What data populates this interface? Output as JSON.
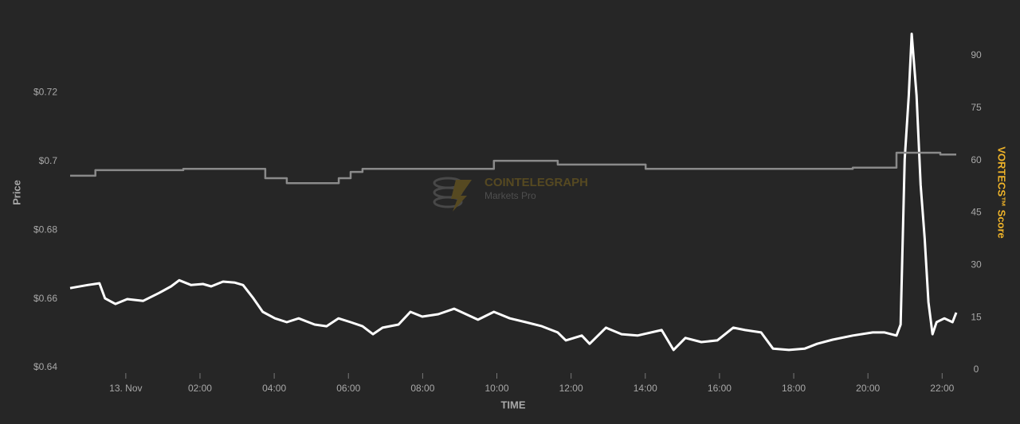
{
  "chart_data": {
    "type": "line",
    "watermark": {
      "title": "COINTELEGRAPH",
      "subtitle": "Markets Pro"
    },
    "x_label": "TIME",
    "y_label": "Price",
    "y2_label": "VORTECS™ Score",
    "xlim": [
      -1.5,
      22.38
    ],
    "xticks": [
      {
        "value": 0,
        "label": "13. Nov"
      },
      {
        "value": 2,
        "label": "02:00"
      },
      {
        "value": 4,
        "label": "04:00"
      },
      {
        "value": 6,
        "label": "06:00"
      },
      {
        "value": 8,
        "label": "08:00"
      },
      {
        "value": 10,
        "label": "10:00"
      },
      {
        "value": 12,
        "label": "12:00"
      },
      {
        "value": 14,
        "label": "14:00"
      },
      {
        "value": 16,
        "label": "16:00"
      },
      {
        "value": 18,
        "label": "18:00"
      },
      {
        "value": 20,
        "label": "20:00"
      },
      {
        "value": 22,
        "label": "22:00"
      }
    ],
    "ylim": [
      0.6393,
      0.74
    ],
    "yticks": [
      {
        "value": 0.64,
        "label": "$0.64"
      },
      {
        "value": 0.66,
        "label": "$0.66"
      },
      {
        "value": 0.68,
        "label": "$0.68"
      },
      {
        "value": 0.7,
        "label": "$0.7"
      },
      {
        "value": 0.72,
        "label": "$0.72"
      }
    ],
    "y2lim": [
      0,
      99.1
    ],
    "y2ticks": [
      0,
      15,
      30,
      45,
      60,
      75,
      90
    ],
    "series": [
      {
        "color": "#ffffff",
        "axis": "y",
        "x": [
          -1.5,
          -1.03,
          -0.71,
          -0.56,
          -0.28,
          0.04,
          0.47,
          0.9,
          1.22,
          1.44,
          1.76,
          2.08,
          2.3,
          2.62,
          2.94,
          3.16,
          3.44,
          3.69,
          4.02,
          4.34,
          4.66,
          5.09,
          5.41,
          5.73,
          6.06,
          6.38,
          6.66,
          6.92,
          7.35,
          7.67,
          7.99,
          8.42,
          8.85,
          9.17,
          9.49,
          9.92,
          10.35,
          10.78,
          11.21,
          11.64,
          11.86,
          12.29,
          12.5,
          12.94,
          13.36,
          13.79,
          14.44,
          14.76,
          15.08,
          15.51,
          15.94,
          16.37,
          16.69,
          17.12,
          17.44,
          17.87,
          18.3,
          18.63,
          19.05,
          19.59,
          20.13,
          20.45,
          20.77,
          20.88,
          20.99,
          21.1,
          21.18,
          21.31,
          21.42,
          21.53,
          21.63,
          21.74,
          21.85,
          22.06,
          22.28,
          22.38
        ],
        "values": [
          0.6631,
          0.664,
          0.6645,
          0.6601,
          0.6585,
          0.6599,
          0.6594,
          0.6617,
          0.6636,
          0.6654,
          0.664,
          0.6643,
          0.6636,
          0.665,
          0.6647,
          0.664,
          0.6601,
          0.6562,
          0.6543,
          0.6532,
          0.6543,
          0.6525,
          0.652,
          0.6543,
          0.6532,
          0.652,
          0.6497,
          0.6516,
          0.6525,
          0.6562,
          0.6548,
          0.6555,
          0.6571,
          0.6555,
          0.6539,
          0.6562,
          0.6543,
          0.6532,
          0.652,
          0.6502,
          0.6479,
          0.6493,
          0.6469,
          0.6516,
          0.6497,
          0.6493,
          0.6509,
          0.6451,
          0.6486,
          0.6474,
          0.6479,
          0.6516,
          0.6509,
          0.6502,
          0.6455,
          0.6451,
          0.6455,
          0.6469,
          0.6481,
          0.6493,
          0.6502,
          0.6502,
          0.6493,
          0.6525,
          0.7006,
          0.7191,
          0.7371,
          0.7191,
          0.6932,
          0.6775,
          0.659,
          0.6497,
          0.6532,
          0.6543,
          0.6532,
          0.656
        ]
      },
      {
        "color": "#8a8a8a",
        "axis": "y2",
        "x": [
          -1.5,
          -0.82,
          -0.82,
          1.55,
          1.55,
          3.76,
          3.76,
          4.34,
          4.34,
          5.74,
          5.74,
          6.06,
          6.06,
          6.38,
          6.38,
          9.92,
          9.92,
          11.64,
          11.64,
          14.01,
          14.01,
          19.59,
          19.59,
          20.77,
          20.77,
          21.95,
          21.95,
          22.38
        ],
        "values": [
          55.6,
          55.6,
          57.2,
          57.2,
          57.6,
          57.6,
          54.9,
          54.9,
          53.5,
          53.5,
          54.9,
          54.9,
          56.7,
          56.7,
          57.6,
          57.6,
          59.9,
          59.9,
          58.8,
          58.8,
          57.6,
          57.6,
          57.9,
          57.9,
          62.2,
          62.2,
          61.7,
          61.7
        ]
      }
    ]
  }
}
